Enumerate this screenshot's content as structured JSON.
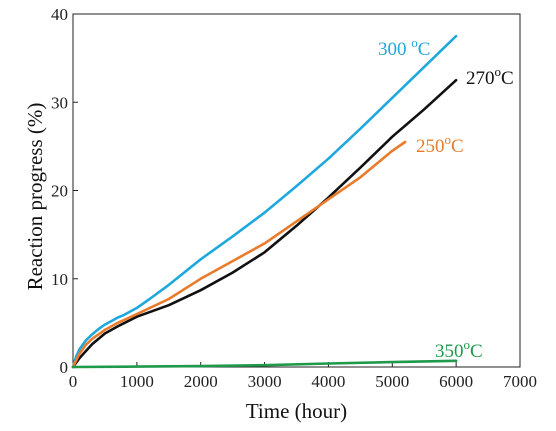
{
  "chart_data": {
    "type": "line",
    "title": "",
    "xlabel": "Time (hour)",
    "ylabel": "Reaction progress (%)",
    "xlim": [
      0,
      7000
    ],
    "ylim": [
      0,
      40
    ],
    "xticks": [
      "0",
      "1000",
      "2000",
      "3000",
      "4000",
      "5000",
      "6000",
      "7000"
    ],
    "yticks": [
      "0",
      "10",
      "20",
      "30",
      "40"
    ],
    "grid": false,
    "legend": "inline labels at line ends",
    "series": [
      {
        "name": "300 °C",
        "label_parts": [
          "300 ",
          "o",
          "C"
        ],
        "color": "#1fa8de",
        "x": [
          0,
          50,
          100,
          200,
          300,
          400,
          500,
          600,
          700,
          800,
          900,
          1000,
          1200,
          1500,
          2000,
          2500,
          3000,
          3500,
          4000,
          4500,
          5000,
          5500,
          6000
        ],
        "y": [
          0,
          1.2,
          2.0,
          3.0,
          3.7,
          4.3,
          4.8,
          5.2,
          5.6,
          5.9,
          6.3,
          6.7,
          7.7,
          9.3,
          12.2,
          14.8,
          17.5,
          20.5,
          23.6,
          27.0,
          30.5,
          34.0,
          37.5
        ]
      },
      {
        "name": "270°C",
        "label_parts": [
          "270",
          "o",
          "C"
        ],
        "color": "#111111",
        "x": [
          0,
          100,
          200,
          300,
          500,
          700,
          1000,
          1500,
          2000,
          2500,
          3000,
          3500,
          4000,
          4500,
          5000,
          5500,
          6000
        ],
        "y": [
          0,
          1.0,
          1.8,
          2.6,
          3.8,
          4.6,
          5.7,
          7.0,
          8.7,
          10.7,
          13.0,
          16.0,
          19.2,
          22.6,
          26.1,
          29.2,
          32.5
        ]
      },
      {
        "name": "250°C",
        "label_parts": [
          "250",
          "o",
          "C"
        ],
        "color": "#e87b2c",
        "x": [
          0,
          100,
          200,
          300,
          500,
          700,
          1000,
          1500,
          2000,
          2500,
          3000,
          3500,
          4000,
          4500,
          5000,
          5200
        ],
        "y": [
          0,
          1.5,
          2.5,
          3.2,
          4.2,
          5.0,
          6.0,
          7.7,
          10.0,
          12.0,
          14.0,
          16.5,
          19.0,
          21.5,
          24.5,
          25.5
        ]
      },
      {
        "name": "350°C",
        "label_parts": [
          "350",
          "o",
          "C"
        ],
        "color": "#1f9a4a",
        "x": [
          0,
          1000,
          2000,
          3000,
          4000,
          5000,
          6000
        ],
        "y": [
          0,
          0.05,
          0.1,
          0.2,
          0.4,
          0.55,
          0.7
        ]
      }
    ]
  }
}
